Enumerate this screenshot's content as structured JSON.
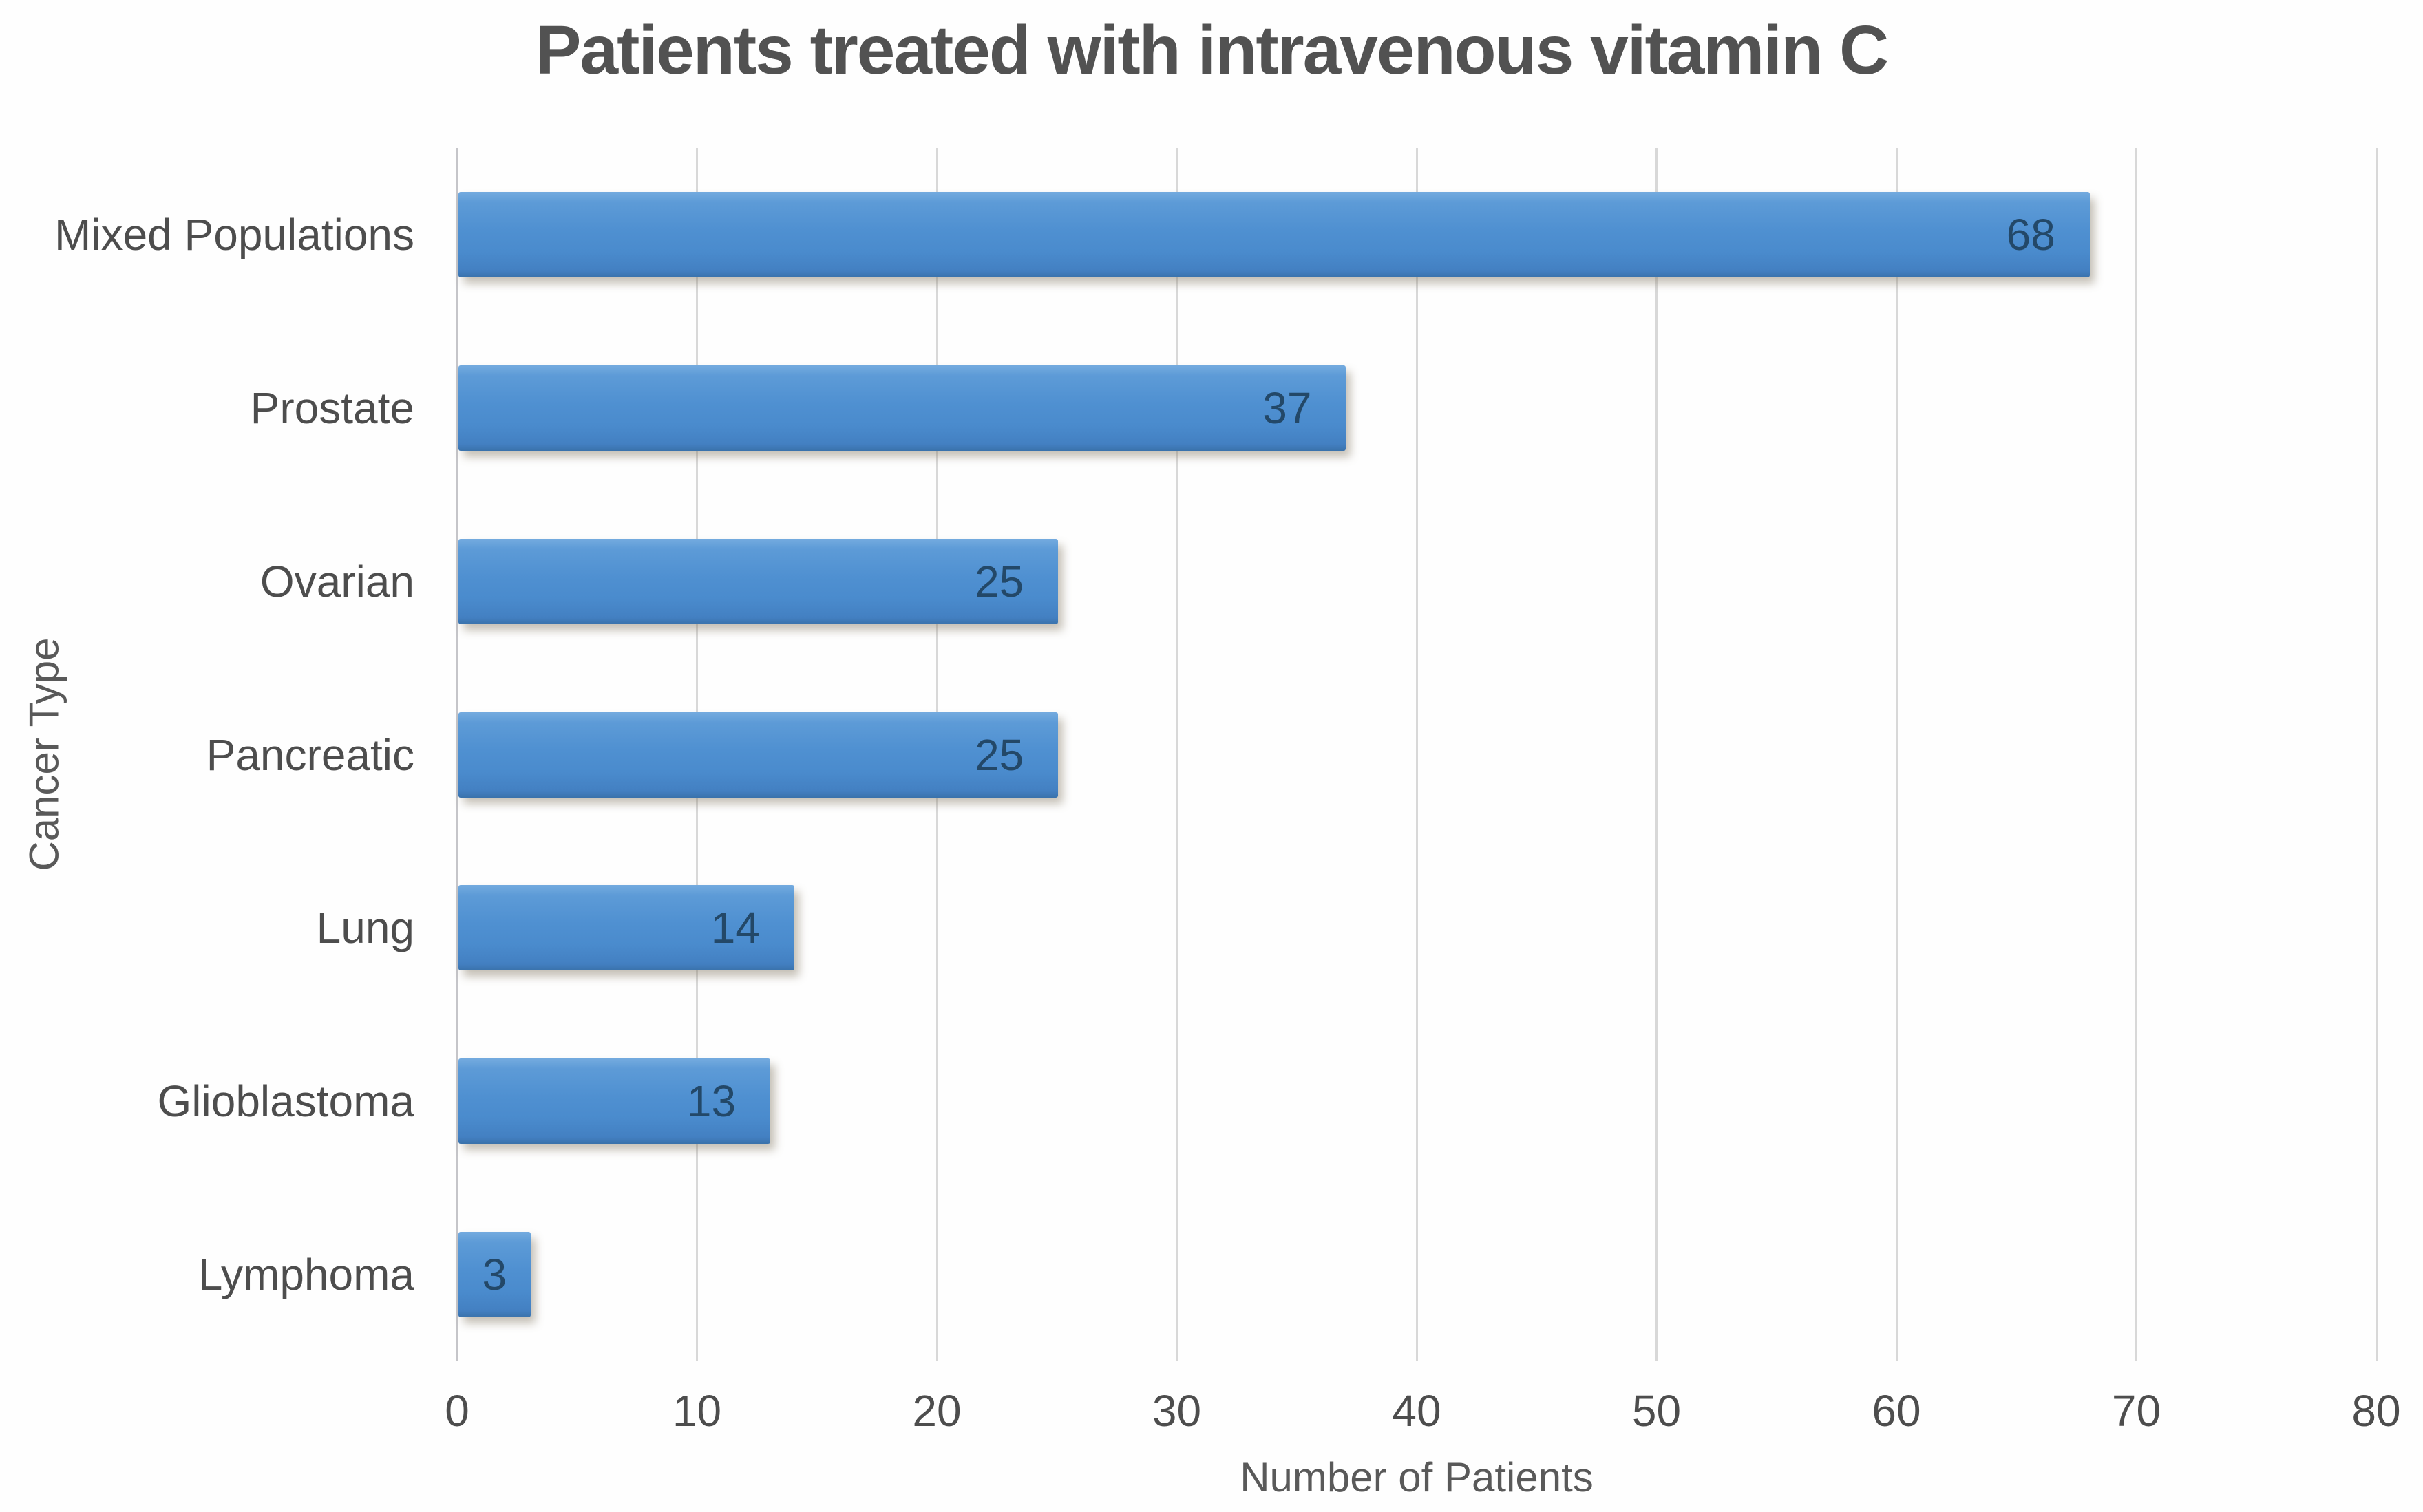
{
  "chart_data": {
    "type": "bar",
    "orientation": "horizontal",
    "title": "Patients treated with intravenous vitamin C",
    "categories": [
      "Mixed Populations",
      "Prostate",
      "Ovarian",
      "Pancreatic",
      "Lung",
      "Glioblastoma",
      "Lymphoma"
    ],
    "values": [
      68,
      37,
      25,
      25,
      14,
      13,
      3
    ],
    "xlabel": "Number of Patients",
    "ylabel": "Cancer Type",
    "xlim": [
      0,
      80
    ],
    "xticks": [
      0,
      10,
      20,
      30,
      40,
      50,
      60,
      70,
      80
    ],
    "grid": true,
    "legend": false,
    "data_label_position": "inside-end",
    "colors": {
      "bar_fill": "#4f90d1",
      "bar_fill_top": "#74abdf",
      "bar_fill_bottom": "#3a72ab",
      "data_label": "#234868",
      "gridline": "#d8d8d8",
      "axis_line": "#c5c5c9",
      "title_text": "#525252",
      "axis_title_text": "#595959",
      "tick_text": "#4d4d4d"
    }
  }
}
